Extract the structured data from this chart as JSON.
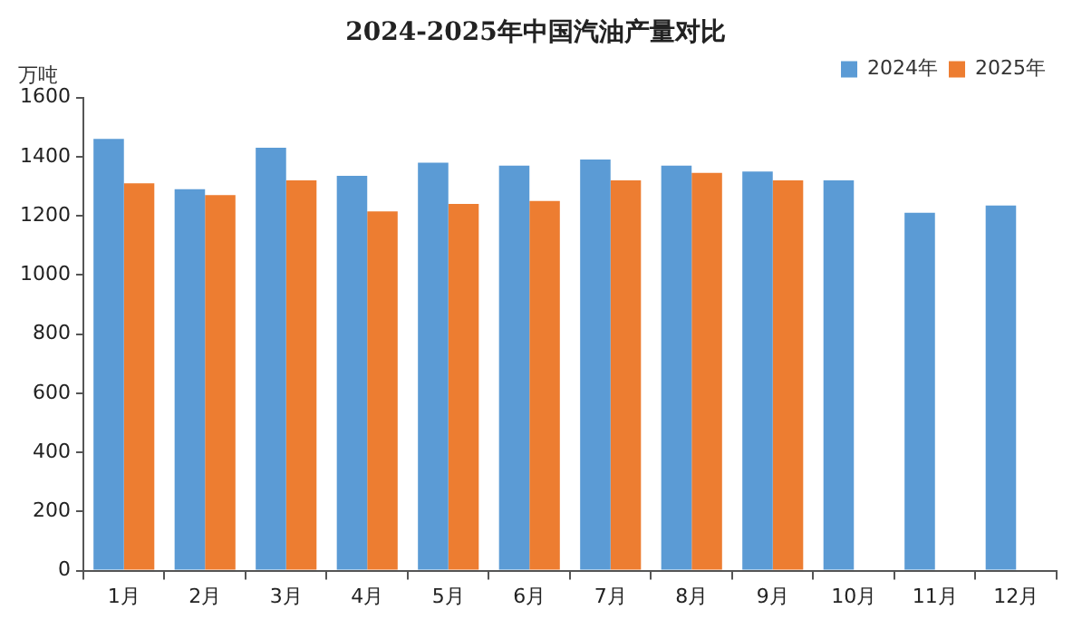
{
  "chart_data": {
    "type": "bar",
    "title": "2024-2025年中国汽油产量对比",
    "ylabel": "万吨",
    "categories": [
      "1月",
      "2月",
      "3月",
      "4月",
      "5月",
      "6月",
      "7月",
      "8月",
      "9月",
      "10月",
      "11月",
      "12月"
    ],
    "series": [
      {
        "name": "2024年",
        "color": "#5b9bd5",
        "values": [
          1460,
          1290,
          1430,
          1335,
          1380,
          1370,
          1390,
          1370,
          1350,
          1320,
          1210,
          1235
        ]
      },
      {
        "name": "2025年",
        "color": "#ed7d31",
        "values": [
          1310,
          1270,
          1320,
          1215,
          1240,
          1250,
          1320,
          1345,
          1320,
          null,
          null,
          null
        ]
      }
    ],
    "ylim": [
      0,
      1600
    ],
    "yticks": [
      0,
      200,
      400,
      600,
      800,
      1000,
      1200,
      1400,
      1600
    ],
    "legend": "top right"
  }
}
